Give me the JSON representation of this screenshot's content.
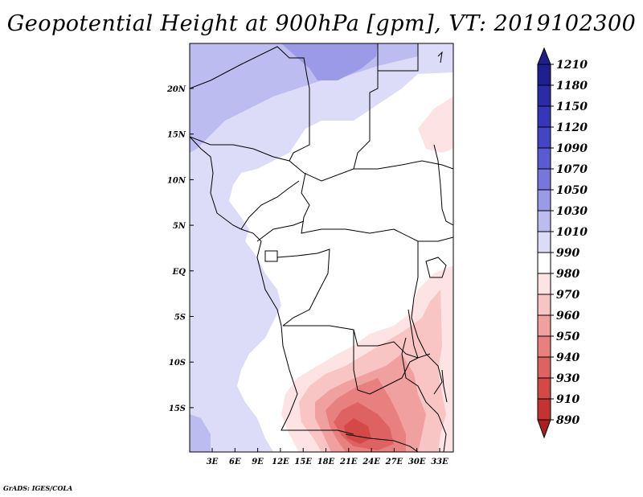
{
  "title": "Geopotential Height at 900hPa [gpm], VT: 2019102300",
  "credit": "GrADS: IGES/COLA",
  "colors": {
    "land_border": "#000000",
    "c1210": "#1f1f8f",
    "c1180": "#2b2ba8",
    "c1150": "#3636b8",
    "c1120": "#4444c6",
    "c1090": "#5a5ad2",
    "c1070": "#7676dc",
    "c1050": "#9a9ae6",
    "c1030": "#bcbcf0",
    "c1010": "#dcdcf8",
    "c990": "#ffffff",
    "c980": "#fde3e3",
    "c970": "#f8c4c4",
    "c960": "#f1a0a0",
    "c950": "#e88080",
    "c940": "#df6262",
    "c930": "#d44848",
    "c910": "#c43232",
    "c890": "#a82020"
  },
  "axes": {
    "lon_ticks": [
      "3E",
      "6E",
      "9E",
      "12E",
      "15E",
      "18E",
      "21E",
      "24E",
      "27E",
      "30E",
      "33E"
    ],
    "lat_ticks": [
      "20N",
      "15N",
      "10N",
      "5N",
      "EQ",
      "5S",
      "10S",
      "15S"
    ]
  },
  "colorbar": {
    "labels": [
      "1210",
      "1180",
      "1150",
      "1120",
      "1090",
      "1070",
      "1050",
      "1030",
      "1010",
      "990",
      "980",
      "970",
      "960",
      "950",
      "940",
      "930",
      "910",
      "890"
    ]
  }
}
